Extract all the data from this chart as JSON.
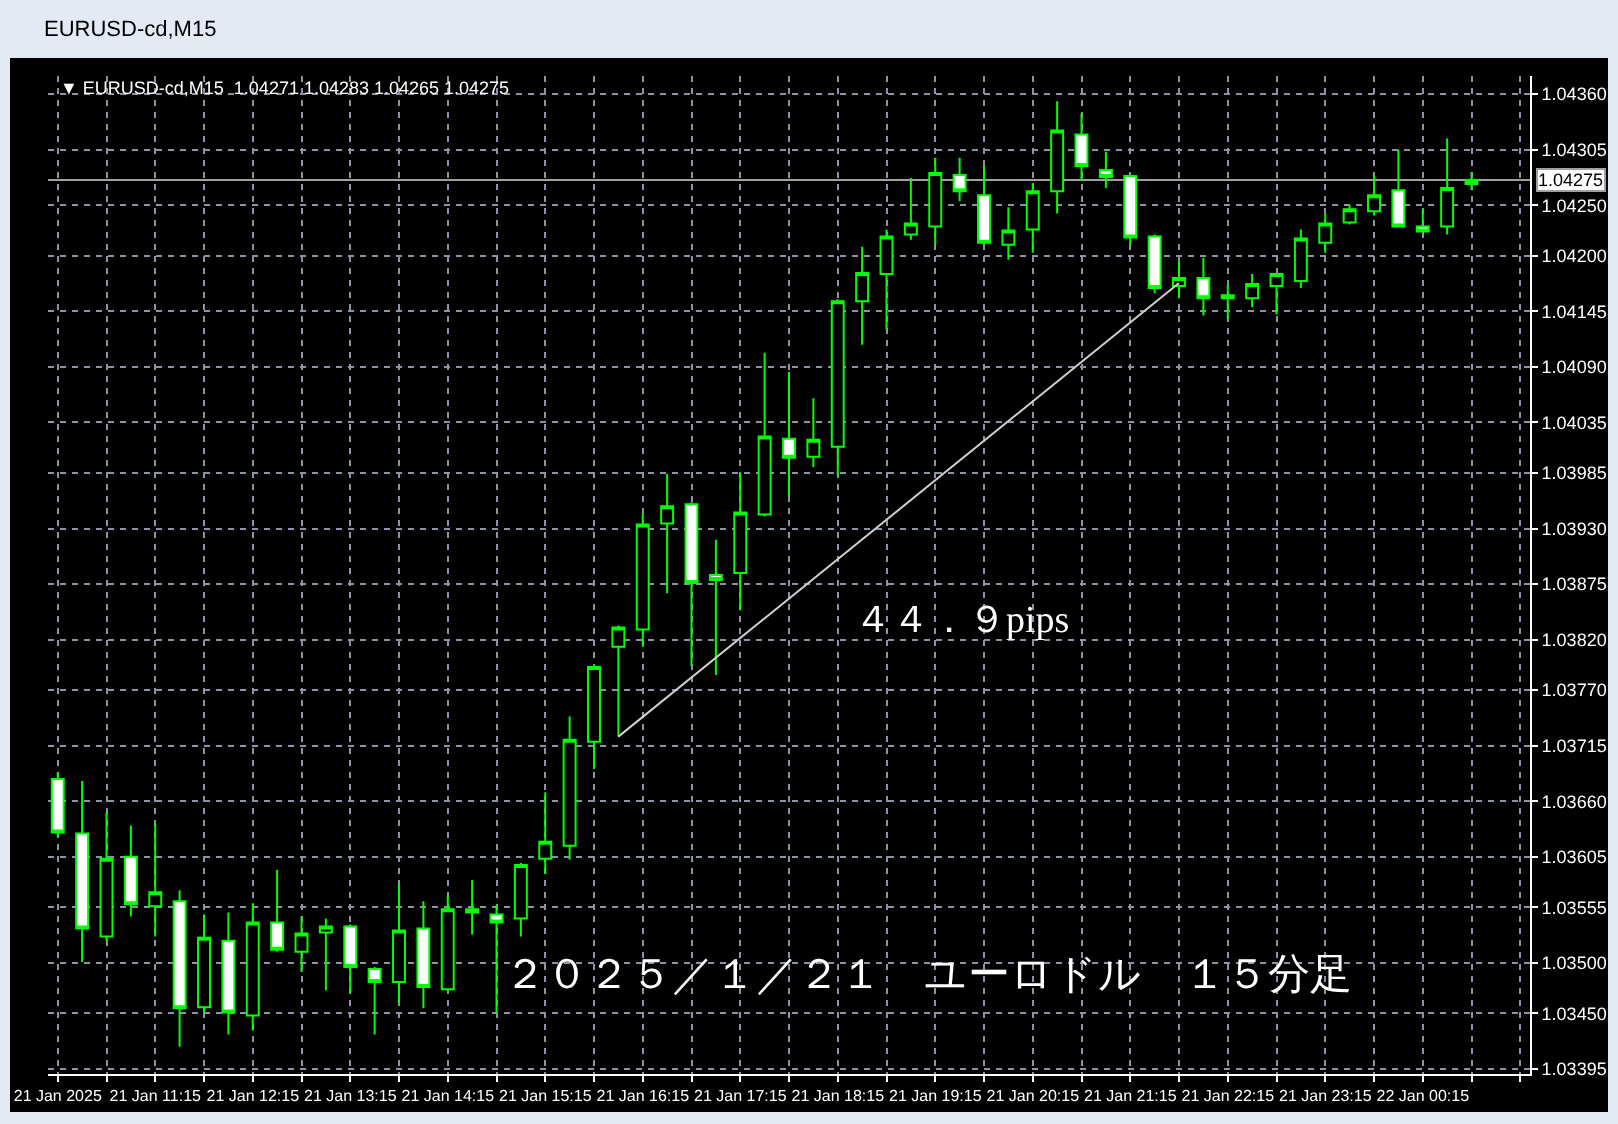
{
  "chart_data": {
    "type": "candlestick",
    "title": "EURUSD-cd,M15",
    "subtitle": "▼ EURUSD-cd,M15  1.04271 1.04283 1.04265 1.04275",
    "x": [
      "2025-01-21T10:15",
      "2025-01-21T10:30",
      "2025-01-21T10:45",
      "2025-01-21T11:00",
      "2025-01-21T11:15",
      "2025-01-21T11:30",
      "2025-01-21T11:45",
      "2025-01-21T12:00",
      "2025-01-21T12:15",
      "2025-01-21T12:30",
      "2025-01-21T12:45",
      "2025-01-21T13:00",
      "2025-01-21T13:15",
      "2025-01-21T13:30",
      "2025-01-21T13:45",
      "2025-01-21T14:00",
      "2025-01-21T14:15",
      "2025-01-21T14:30",
      "2025-01-21T14:45",
      "2025-01-21T15:00",
      "2025-01-21T15:15",
      "2025-01-21T15:30",
      "2025-01-21T15:45",
      "2025-01-21T16:00",
      "2025-01-21T16:15",
      "2025-01-21T16:30",
      "2025-01-21T16:45",
      "2025-01-21T17:00",
      "2025-01-21T17:15",
      "2025-01-21T17:30",
      "2025-01-21T17:45",
      "2025-01-21T18:00",
      "2025-01-21T18:15",
      "2025-01-21T18:30",
      "2025-01-21T18:45",
      "2025-01-21T19:00",
      "2025-01-21T19:15",
      "2025-01-21T19:30",
      "2025-01-21T19:45",
      "2025-01-21T20:00",
      "2025-01-21T20:15",
      "2025-01-21T20:30",
      "2025-01-21T20:45",
      "2025-01-21T21:00",
      "2025-01-21T21:15",
      "2025-01-21T21:30",
      "2025-01-21T21:45",
      "2025-01-21T22:00",
      "2025-01-21T22:15",
      "2025-01-21T22:30",
      "2025-01-21T22:45",
      "2025-01-21T23:00",
      "2025-01-21T23:15",
      "2025-01-21T23:30",
      "2025-01-21T23:45",
      "2025-01-22T00:00",
      "2025-01-22T00:15",
      "2025-01-22T00:30",
      "2025-01-22T00:45"
    ],
    "ohlc": [
      [
        1.03682,
        1.03689,
        1.03625,
        1.03629
      ],
      [
        1.03628,
        1.0368,
        1.03501,
        1.03534
      ],
      [
        1.03526,
        1.03649,
        1.03522,
        1.03603
      ],
      [
        1.03605,
        1.03636,
        1.03546,
        1.03558
      ],
      [
        1.03556,
        1.03638,
        1.03526,
        1.0357
      ],
      [
        1.03561,
        1.03572,
        1.03417,
        1.03455
      ],
      [
        1.03456,
        1.03548,
        1.03451,
        1.03525
      ],
      [
        1.03522,
        1.0355,
        1.03429,
        1.03451
      ],
      [
        1.03448,
        1.03559,
        1.03433,
        1.0354
      ],
      [
        1.0354,
        1.03592,
        1.03511,
        1.03513
      ],
      [
        1.03511,
        1.03546,
        1.03491,
        1.03529
      ],
      [
        1.0353,
        1.03544,
        1.03473,
        1.03536
      ],
      [
        1.03536,
        1.03538,
        1.0347,
        1.03496
      ],
      [
        1.03494,
        1.03496,
        1.03429,
        1.03481
      ],
      [
        1.03481,
        1.03578,
        1.0346,
        1.03532
      ],
      [
        1.03534,
        1.03561,
        1.03455,
        1.03476
      ],
      [
        1.03474,
        1.03567,
        1.03472,
        1.03553
      ],
      [
        1.0355,
        1.03582,
        1.03528,
        1.03553
      ],
      [
        1.03548,
        1.03557,
        1.03451,
        1.0354
      ],
      [
        1.03544,
        1.03599,
        1.03526,
        1.03597
      ],
      [
        1.03603,
        1.03669,
        1.03588,
        1.0362
      ],
      [
        1.03616,
        1.03744,
        1.03602,
        1.03721
      ],
      [
        1.03719,
        1.03795,
        1.03692,
        1.03793
      ],
      [
        1.03813,
        1.03834,
        1.03724,
        1.03832
      ],
      [
        1.0383,
        1.03945,
        1.03813,
        1.03934
      ],
      [
        1.03935,
        1.03984,
        1.03866,
        1.03952
      ],
      [
        1.03954,
        1.03956,
        1.03794,
        1.03876
      ],
      [
        1.03884,
        1.03919,
        1.03785,
        1.03879
      ],
      [
        1.03886,
        1.03985,
        1.03849,
        1.03946
      ],
      [
        1.03944,
        1.04104,
        1.03942,
        1.04021
      ],
      [
        1.04019,
        1.04085,
        1.03962,
        1.04
      ],
      [
        1.04001,
        1.04059,
        1.03991,
        1.04018
      ],
      [
        1.04011,
        1.04157,
        1.03982,
        1.04155
      ],
      [
        1.04155,
        1.04209,
        1.04112,
        1.04183
      ],
      [
        1.04182,
        1.04226,
        1.04127,
        1.04219
      ],
      [
        1.04221,
        1.04277,
        1.04216,
        1.04232
      ],
      [
        1.04229,
        1.04297,
        1.04211,
        1.04282
      ],
      [
        1.0428,
        1.04297,
        1.04254,
        1.04264
      ],
      [
        1.0426,
        1.04289,
        1.04211,
        1.04213
      ],
      [
        1.04211,
        1.04248,
        1.04196,
        1.04225
      ],
      [
        1.04226,
        1.04272,
        1.04203,
        1.04264
      ],
      [
        1.04264,
        1.04353,
        1.04242,
        1.04324
      ],
      [
        1.0432,
        1.04341,
        1.04274,
        1.04289
      ],
      [
        1.04285,
        1.04303,
        1.04267,
        1.04278
      ],
      [
        1.04279,
        1.04281,
        1.04211,
        1.04218
      ],
      [
        1.04219,
        1.04221,
        1.04163,
        1.04168
      ],
      [
        1.0417,
        1.04195,
        1.04158,
        1.04178
      ],
      [
        1.04178,
        1.04198,
        1.04141,
        1.04158
      ],
      [
        1.04158,
        1.04171,
        1.04138,
        1.04161
      ],
      [
        1.04158,
        1.04182,
        1.04149,
        1.04172
      ],
      [
        1.0417,
        1.04183,
        1.04142,
        1.04182
      ],
      [
        1.04175,
        1.04226,
        1.04168,
        1.04217
      ],
      [
        1.04213,
        1.04242,
        1.04203,
        1.04232
      ],
      [
        1.04233,
        1.0425,
        1.04231,
        1.04246
      ],
      [
        1.04244,
        1.0428,
        1.0424,
        1.0426
      ],
      [
        1.04265,
        1.04305,
        1.04228,
        1.04229
      ],
      [
        1.04229,
        1.04246,
        1.04224,
        1.04224
      ],
      [
        1.04229,
        1.04316,
        1.04221,
        1.04267
      ],
      [
        1.04271,
        1.04283,
        1.04265,
        1.04275
      ]
    ],
    "color": "#00ff00",
    "series": [
      {
        "type": "line",
        "x": [
          "2025-01-21T16:00",
          "2025-01-21T21:45"
        ],
        "values": [
          1.03724,
          1.04173
        ],
        "color": "#d0d0d0"
      }
    ],
    "xlim": [
      "2025-01-21T10:09",
      "2025-01-22T01:21"
    ],
    "xticks": [
      {
        "value": "2025-01-21T10:15",
        "label": "21 Jan 2025"
      },
      {
        "value": "2025-01-21T10:45",
        "label": null
      },
      {
        "value": "2025-01-21T11:15",
        "label": "21 Jan 11:15"
      },
      {
        "value": "2025-01-21T11:45",
        "label": null
      },
      {
        "value": "2025-01-21T12:15",
        "label": "21 Jan 12:15"
      },
      {
        "value": "2025-01-21T12:45",
        "label": null
      },
      {
        "value": "2025-01-21T13:15",
        "label": "21 Jan 13:15"
      },
      {
        "value": "2025-01-21T13:45",
        "label": null
      },
      {
        "value": "2025-01-21T14:15",
        "label": "21 Jan 14:15"
      },
      {
        "value": "2025-01-21T14:45",
        "label": null
      },
      {
        "value": "2025-01-21T15:15",
        "label": "21 Jan 15:15"
      },
      {
        "value": "2025-01-21T15:45",
        "label": null
      },
      {
        "value": "2025-01-21T16:15",
        "label": "21 Jan 16:15"
      },
      {
        "value": "2025-01-21T16:45",
        "label": null
      },
      {
        "value": "2025-01-21T17:15",
        "label": "21 Jan 17:15"
      },
      {
        "value": "2025-01-21T17:45",
        "label": null
      },
      {
        "value": "2025-01-21T18:15",
        "label": "21 Jan 18:15"
      },
      {
        "value": "2025-01-21T18:45",
        "label": null
      },
      {
        "value": "2025-01-21T19:15",
        "label": "21 Jan 19:15"
      },
      {
        "value": "2025-01-21T19:45",
        "label": null
      },
      {
        "value": "2025-01-21T20:15",
        "label": "21 Jan 20:15"
      },
      {
        "value": "2025-01-21T20:45",
        "label": null
      },
      {
        "value": "2025-01-21T21:15",
        "label": "21 Jan 21:15"
      },
      {
        "value": "2025-01-21T21:45",
        "label": null
      },
      {
        "value": "2025-01-21T22:15",
        "label": "21 Jan 22:15"
      },
      {
        "value": "2025-01-21T22:45",
        "label": null
      },
      {
        "value": "2025-01-21T23:15",
        "label": "21 Jan 23:15"
      },
      {
        "value": "2025-01-21T23:45",
        "label": null
      },
      {
        "value": "2025-01-22T00:15",
        "label": "22 Jan 00:15"
      },
      {
        "value": "2025-01-22T00:45",
        "label": null
      },
      {
        "value": "2025-01-22T01:15",
        "label": null
      }
    ],
    "ylim": [
      1.0339,
      1.04378
    ],
    "yticks": [
      {
        "value": 1.0436,
        "label": "1.04360"
      },
      1.04305,
      {
        "value": 1.0425,
        "label": "1.04250"
      },
      {
        "value": 1.042,
        "label": "1.04200"
      },
      1.04145,
      {
        "value": 1.0409,
        "label": "1.04090"
      },
      1.04035,
      1.03985,
      {
        "value": 1.0393,
        "label": "1.03930"
      },
      1.03875,
      {
        "value": 1.0382,
        "label": "1.03820"
      },
      {
        "value": 1.0377,
        "label": "1.03770"
      },
      1.03715,
      {
        "value": 1.0366,
        "label": "1.03660"
      },
      1.03605,
      1.03555,
      {
        "value": 1.035,
        "label": "1.03500"
      },
      {
        "value": 1.0345,
        "label": "1.03450"
      },
      1.03395
    ],
    "ref_lines": [
      {
        "axis": "y",
        "value": 1.04275,
        "label": "1.04275",
        "color": "#a0a0a0"
      }
    ],
    "annotations": [
      "４４．９pips",
      "２０２５／１／２１　ユーロドル　１５分足"
    ],
    "grid": true
  }
}
